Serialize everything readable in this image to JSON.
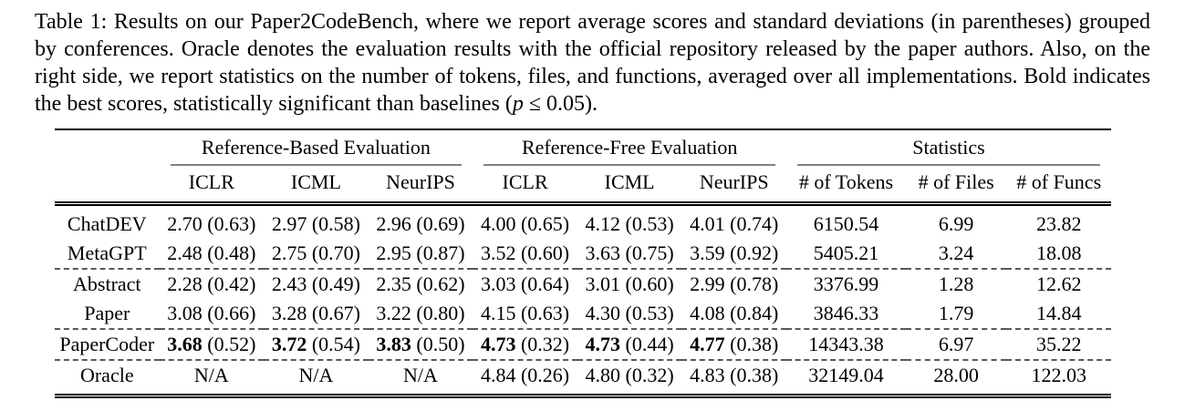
{
  "caption": {
    "text_before_p": "Table 1: Results on our Paper2CodeBench, where we report average scores and standard deviations (in parentheses) grouped by conferences. Oracle denotes the evaluation results with the official repository released by the paper authors. Also, on the right side, we report statistics on the number of tokens, files, and functions, averaged over all implementations. Bold indicates the best scores, statistically significant than baselines (",
    "p_symbol": "p",
    "text_after_p": " ≤ 0.05)."
  },
  "table": {
    "column_groups": [
      {
        "label": "Reference-Based Evaluation",
        "span": 3
      },
      {
        "label": "Reference-Free Evaluation",
        "span": 3
      },
      {
        "label": "Statistics",
        "span": 3
      }
    ],
    "columns": [
      "ICLR",
      "ICML",
      "NeurIPS",
      "ICLR",
      "ICML",
      "NeurIPS",
      "# of Tokens",
      "# of Files",
      "# of Funcs"
    ],
    "sections": [
      {
        "rows": [
          {
            "label": "ChatDEV",
            "bold_values": false,
            "cells": [
              "2.70 (0.63)",
              "2.97 (0.58)",
              "2.96 (0.69)",
              "4.00 (0.65)",
              "4.12 (0.53)",
              "4.01 (0.74)",
              "6150.54",
              "6.99",
              "23.82"
            ]
          },
          {
            "label": "MetaGPT",
            "bold_values": false,
            "cells": [
              "2.48 (0.48)",
              "2.75 (0.70)",
              "2.95 (0.87)",
              "3.52 (0.60)",
              "3.63 (0.75)",
              "3.59 (0.92)",
              "5405.21",
              "3.24",
              "18.08"
            ]
          }
        ]
      },
      {
        "rows": [
          {
            "label": "Abstract",
            "bold_values": false,
            "cells": [
              "2.28 (0.42)",
              "2.43 (0.49)",
              "2.35 (0.62)",
              "3.03 (0.64)",
              "3.01 (0.60)",
              "2.99 (0.78)",
              "3376.99",
              "1.28",
              "12.62"
            ]
          },
          {
            "label": "Paper",
            "bold_values": false,
            "cells": [
              "3.08 (0.66)",
              "3.28 (0.67)",
              "3.22 (0.80)",
              "4.15 (0.63)",
              "4.30 (0.53)",
              "4.08 (0.84)",
              "3846.33",
              "1.79",
              "14.84"
            ]
          }
        ]
      },
      {
        "rows": [
          {
            "label": "PaperCoder",
            "bold_values": true,
            "cells": [
              "3.68 (0.52)",
              "3.72 (0.54)",
              "3.83 (0.50)",
              "4.73 (0.32)",
              "4.73 (0.44)",
              "4.77 (0.38)",
              "14343.38",
              "6.97",
              "35.22"
            ]
          }
        ]
      },
      {
        "rows": [
          {
            "label": "Oracle",
            "bold_values": false,
            "cells": [
              "N/A",
              "N/A",
              "N/A",
              "4.84 (0.26)",
              "4.80 (0.32)",
              "4.83 (0.38)",
              "32149.04",
              "28.00",
              "122.03"
            ]
          }
        ]
      }
    ]
  },
  "colors": {
    "rule": "#000000",
    "cmidrule": "#838383",
    "dashed_rule": "#595959",
    "text": "#000000",
    "background": "#ffffff"
  }
}
